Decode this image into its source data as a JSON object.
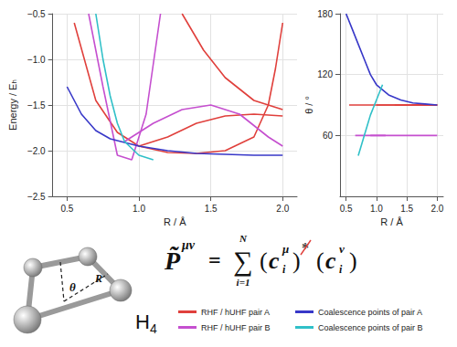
{
  "chart_data": {
    "type": "line",
    "xlabel": "R / Å",
    "ylabel": "Energy / Eₕ",
    "thetalabel": "θ / °",
    "xlim": [
      0.4,
      2.1
    ],
    "xticks": [
      0.5,
      {
        "value": 1,
        "label": "1.0"
      },
      1.5,
      {
        "value": 2,
        "label": "2.0"
      }
    ],
    "ylim": [
      -2.5,
      -0.5
    ],
    "yticks": [
      {
        "value": -2.5,
        "label": "−2.5"
      },
      {
        "value": -2,
        "label": "−2.0"
      },
      {
        "value": -1.5,
        "label": "−1.5"
      },
      {
        "value": -1,
        "label": "−1.0"
      },
      {
        "value": -0.5,
        "label": "−0.5"
      }
    ],
    "thetalim": [
      0,
      180
    ],
    "thetaticks": [
      60,
      120,
      180
    ],
    "grid": true,
    "legend": "lower right",
    "series": [
      {
        "name": "RHF / hUHF pair A",
        "color": "#e0403c",
        "curves": [
          {
            "R": [
              0.55,
              0.7,
              0.85,
              1.0,
              1.2,
              1.4,
              1.6,
              1.8,
              1.9,
              1.95,
              2.0
            ],
            "theta": [
              90,
              90,
              90,
              90,
              90,
              90,
              90,
              90,
              90,
              90,
              90
            ],
            "E": [
              -0.6,
              -1.45,
              -1.8,
              -1.95,
              -2.02,
              -2.03,
              -2.0,
              -1.85,
              -1.5,
              -1.1,
              -0.6
            ]
          },
          {
            "R": [
              1.0,
              1.2,
              1.4,
              1.6,
              1.8,
              2.0
            ],
            "theta": [
              90,
              90,
              90,
              90,
              90,
              90
            ],
            "E": [
              -1.95,
              -1.85,
              -1.7,
              -1.62,
              -1.6,
              -1.62
            ]
          },
          {
            "R": [
              1.3,
              1.45,
              1.6,
              1.8,
              2.0
            ],
            "theta": [
              90,
              90,
              90,
              90,
              90
            ],
            "E": [
              -0.5,
              -0.9,
              -1.2,
              -1.45,
              -1.55
            ]
          }
        ]
      },
      {
        "name": "RHF / hUHF pair B",
        "color": "#c54fcf",
        "curves": [
          {
            "R": [
              0.65,
              0.75,
              0.85,
              0.95,
              1.05,
              1.15
            ],
            "theta": [
              60,
              60,
              60,
              60,
              60,
              60
            ],
            "E": [
              -0.5,
              -1.3,
              -2.05,
              -2.1,
              -1.6,
              -0.5
            ]
          },
          {
            "R": [
              0.9,
              1.1,
              1.3,
              1.5,
              1.7,
              1.9,
              2.0
            ],
            "theta": [
              60,
              60,
              60,
              60,
              60,
              60,
              60
            ],
            "E": [
              -1.9,
              -1.7,
              -1.55,
              -1.5,
              -1.6,
              -1.85,
              -1.95
            ]
          }
        ]
      },
      {
        "name": "Coalescence points of pair A",
        "color": "#3838c8",
        "curves": [
          {
            "R": [
              0.5,
              0.6,
              0.7,
              0.8,
              0.9,
              1.0,
              1.2,
              1.4,
              1.6,
              1.8,
              2.0
            ],
            "theta": [
              180,
              165,
              150,
              135,
              120,
              110,
              100,
              95,
              92,
              91,
              90
            ],
            "E": [
              -1.3,
              -1.6,
              -1.78,
              -1.87,
              -1.91,
              -1.95,
              -2.0,
              -2.03,
              -2.04,
              -2.05,
              -2.05
            ]
          }
        ]
      },
      {
        "name": "Coalescence points of pair B",
        "color": "#30c0c8",
        "curves": [
          {
            "R": [
              0.7,
              0.75,
              0.8,
              0.85,
              0.9,
              1.0,
              1.1
            ],
            "theta": [
              40,
              50,
              60,
              70,
              80,
              95,
              110
            ],
            "E": [
              -0.5,
              -1.0,
              -1.4,
              -1.7,
              -1.9,
              -2.05,
              -2.1
            ]
          }
        ]
      }
    ]
  },
  "formula": {
    "lhs": "P̃",
    "lhs_sup": "μν",
    "equals": "=",
    "sum": "∑",
    "sum_top": "N",
    "sum_bottom": "i=1",
    "open": "(",
    "close": ")",
    "base": "c",
    "sub": "i",
    "sup_1": "μ",
    "star": "*",
    "sup_2": "ν"
  },
  "molecule": {
    "label": "H",
    "label_sub": "4",
    "angle_label": "θ",
    "bond_label": "R"
  }
}
